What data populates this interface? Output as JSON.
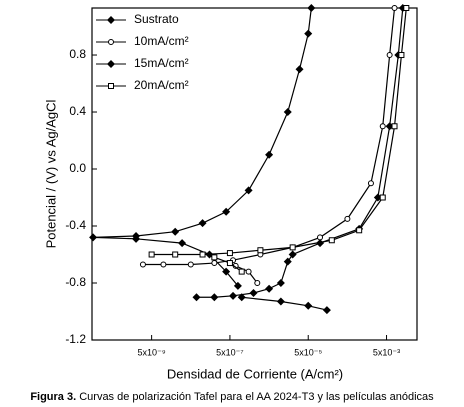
{
  "chart_data": {
    "type": "line",
    "x_label": "Densidad de Corriente (A/cm²)",
    "y_label": "Potencial / (V) vs Ag/AgCl",
    "caption_label": "Figura 3.",
    "caption": "Curvas de polarización Tafel para el AA 2024-T3 y las películas anódicas",
    "x_log": true,
    "xlim": [
      1.5e-10,
      0.03
    ],
    "ylim": [
      -1.2,
      1.13
    ],
    "xticks": [
      {
        "value": 5e-09,
        "label": "5x10⁻⁹"
      },
      {
        "value": 5e-07,
        "label": "5x10⁻⁷"
      },
      {
        "value": 5e-05,
        "label": "5x10⁻⁵"
      },
      {
        "value": 0.005,
        "label": "5x10⁻³"
      }
    ],
    "yticks": [
      -1.2,
      -0.8,
      -0.4,
      {
        "value": 0,
        "label": "0.0"
      },
      0.4,
      0.8
    ],
    "legend": "upper-left",
    "series": [
      {
        "name": "Sustrato",
        "color": "#000000",
        "marker": "diamond",
        "x": [
          8e-07,
          4e-07,
          1.5e-07,
          3e-08,
          2e-09,
          1.6e-10,
          2e-09,
          2e-08,
          1e-07,
          4e-07,
          1.5e-06,
          5e-06,
          1.5e-05,
          3e-05,
          5e-05,
          6e-05
        ],
        "values": [
          -0.82,
          -0.72,
          -0.6,
          -0.52,
          -0.49,
          -0.48,
          -0.47,
          -0.44,
          -0.38,
          -0.3,
          -0.15,
          0.1,
          0.4,
          0.7,
          0.95,
          1.13
        ]
      },
      {
        "name": "10mA/cm²",
        "color": "#000000",
        "marker": "circle",
        "x": [
          3e-09,
          1e-08,
          5e-08,
          2e-07,
          6e-07,
          3e-06,
          2e-05,
          0.0001,
          0.0005,
          0.002,
          0.004,
          0.006,
          0.008,
          null,
          7e-07,
          1.5e-06,
          2.5e-06
        ],
        "values": [
          -0.67,
          -0.67,
          -0.67,
          -0.66,
          -0.64,
          -0.6,
          -0.55,
          -0.48,
          -0.35,
          -0.1,
          0.3,
          0.8,
          1.13,
          null,
          -0.68,
          -0.72,
          -0.8
        ]
      },
      {
        "name": "15mA/cm²",
        "color": "#000000",
        "marker": "diamond",
        "x": [
          7e-08,
          2e-07,
          6e-07,
          2e-06,
          5e-06,
          1e-05,
          1.5e-05,
          2e-05,
          0.0001,
          0.001,
          0.003,
          0.006,
          0.01,
          0.013,
          null,
          1e-06,
          1e-05,
          5e-05,
          0.00015
        ],
        "values": [
          -0.9,
          -0.9,
          -0.89,
          -0.87,
          -0.84,
          -0.8,
          -0.65,
          -0.6,
          -0.52,
          -0.42,
          -0.2,
          0.3,
          0.8,
          1.13,
          null,
          -0.9,
          -0.93,
          -0.96,
          -0.99
        ]
      },
      {
        "name": "20mA/cm²",
        "color": "#000000",
        "marker": "square",
        "x": [
          5e-09,
          2e-08,
          1e-07,
          5e-07,
          3e-06,
          2e-05,
          0.0002,
          0.001,
          0.004,
          0.008,
          0.012,
          0.016,
          null,
          2e-07,
          5e-07,
          1e-06
        ],
        "values": [
          -0.6,
          -0.6,
          -0.6,
          -0.59,
          -0.57,
          -0.55,
          -0.5,
          -0.43,
          -0.2,
          0.3,
          0.8,
          1.13,
          null,
          -0.62,
          -0.66,
          -0.72
        ]
      }
    ]
  }
}
